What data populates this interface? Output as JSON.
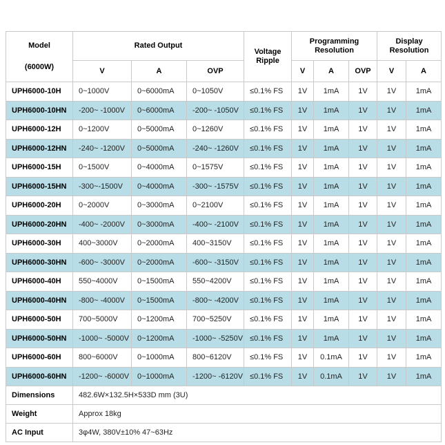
{
  "table": {
    "header": {
      "model_line1": "Model",
      "model_line2": "(6000W)",
      "rated_output": "Rated Output",
      "voltage_ripple_line1": "Voltage",
      "voltage_ripple_line2": "Ripple",
      "programming_resolution_line1": "Programming",
      "programming_resolution_line2": "Resolution",
      "display_resolution_line1": "Display",
      "display_resolution_line2": "Resolution",
      "sub_columns": [
        "V",
        "A",
        "OVP",
        "V",
        "A",
        "OVP",
        "V",
        "A"
      ]
    },
    "rows": [
      {
        "model": "UPH6000-10H",
        "v": "0~1000V",
        "a": "0~6000mA",
        "ovp": "0~1050V",
        "ripple": "≤0.1% FS",
        "pv": "1V",
        "pa": "1mA",
        "povp": "1V",
        "dv": "1V",
        "da": "1mA",
        "highlight": false
      },
      {
        "model": "UPH6000-10HN",
        "v": "-200~ -1000V",
        "a": "0~6000mA",
        "ovp": "-200~ -1050V",
        "ripple": "≤0.1% FS",
        "pv": "1V",
        "pa": "1mA",
        "povp": "1V",
        "dv": "1V",
        "da": "1mA",
        "highlight": true
      },
      {
        "model": "UPH6000-12H",
        "v": "0~1200V",
        "a": "0~5000mA",
        "ovp": "0~1260V",
        "ripple": "≤0.1% FS",
        "pv": "1V",
        "pa": "1mA",
        "povp": "1V",
        "dv": "1V",
        "da": "1mA",
        "highlight": false
      },
      {
        "model": "UPH6000-12HN",
        "v": "-240~ -1200V",
        "a": "0~5000mA",
        "ovp": "-240~ -1260V",
        "ripple": "≤0.1% FS",
        "pv": "1V",
        "pa": "1mA",
        "povp": "1V",
        "dv": "1V",
        "da": "1mA",
        "highlight": true
      },
      {
        "model": "UPH6000-15H",
        "v": "0~1500V",
        "a": "0~4000mA",
        "ovp": "0~1575V",
        "ripple": "≤0.1% FS",
        "pv": "1V",
        "pa": "1mA",
        "povp": "1V",
        "dv": "1V",
        "da": "1mA",
        "highlight": false
      },
      {
        "model": "UPH6000-15HN",
        "v": "-300~-1500V",
        "a": "0~4000mA",
        "ovp": "-300~ -1575V",
        "ripple": "≤0.1% FS",
        "pv": "1V",
        "pa": "1mA",
        "povp": "1V",
        "dv": "1V",
        "da": "1mA",
        "highlight": true
      },
      {
        "model": "UPH6000-20H",
        "v": "0~2000V",
        "a": "0~3000mA",
        "ovp": "0~2100V",
        "ripple": "≤0.1% FS",
        "pv": "1V",
        "pa": "1mA",
        "povp": "1V",
        "dv": "1V",
        "da": "1mA",
        "highlight": false
      },
      {
        "model": "UPH6000-20HN",
        "v": "-400~ -2000V",
        "a": "0~3000mA",
        "ovp": "-400~ -2100V",
        "ripple": "≤0.1% FS",
        "pv": "1V",
        "pa": "1mA",
        "povp": "1V",
        "dv": "1V",
        "da": "1mA",
        "highlight": true
      },
      {
        "model": "UPH6000-30H",
        "v": "400~3000V",
        "a": "0~2000mA",
        "ovp": "400~3150V",
        "ripple": "≤0.1% FS",
        "pv": "1V",
        "pa": "1mA",
        "povp": "1V",
        "dv": "1V",
        "da": "1mA",
        "highlight": false
      },
      {
        "model": "UPH6000-30HN",
        "v": "-600~ -3000V",
        "a": "0~2000mA",
        "ovp": "-600~ -3150V",
        "ripple": "≤0.1% FS",
        "pv": "1V",
        "pa": "1mA",
        "povp": "1V",
        "dv": "1V",
        "da": "1mA",
        "highlight": true
      },
      {
        "model": "UPH6000-40H",
        "v": "550~4000V",
        "a": "0~1500mA",
        "ovp": "550~4200V",
        "ripple": "≤0.1% FS",
        "pv": "1V",
        "pa": "1mA",
        "povp": "1V",
        "dv": "1V",
        "da": "1mA",
        "highlight": false
      },
      {
        "model": "UPH6000-40HN",
        "v": "-800~ -4000V",
        "a": "0~1500mA",
        "ovp": "-800~ -4200V",
        "ripple": "≤0.1% FS",
        "pv": "1V",
        "pa": "1mA",
        "povp": "1V",
        "dv": "1V",
        "da": "1mA",
        "highlight": true
      },
      {
        "model": "UPH6000-50H",
        "v": "700~5000V",
        "a": "0~1200mA",
        "ovp": "700~5250V",
        "ripple": "≤0.1% FS",
        "pv": "1V",
        "pa": "1mA",
        "povp": "1V",
        "dv": "1V",
        "da": "1mA",
        "highlight": false
      },
      {
        "model": "UPH6000-50HN",
        "v": "-1000~ -5000V",
        "a": "0~1200mA",
        "ovp": "-1000~ -5250V",
        "ripple": "≤0.1% FS",
        "pv": "1V",
        "pa": "1mA",
        "povp": "1V",
        "dv": "1V",
        "da": "1mA",
        "highlight": true
      },
      {
        "model": "UPH6000-60H",
        "v": "800~6000V",
        "a": "0~1000mA",
        "ovp": "800~6120V",
        "ripple": "≤0.1% FS",
        "pv": "1V",
        "pa": "0.1mA",
        "povp": "1V",
        "dv": "1V",
        "da": "1mA",
        "highlight": false
      },
      {
        "model": "UPH6000-60HN",
        "v": "-1200~ -6000V",
        "a": "0~1000mA",
        "ovp": "-1200~ -6120V",
        "ripple": "≤0.1% FS",
        "pv": "1V",
        "pa": "0.1mA",
        "povp": "1V",
        "dv": "1V",
        "da": "1mA",
        "highlight": true
      }
    ],
    "footer_rows": [
      {
        "label": "Dimensions",
        "value": "482.6W×132.5H×533D mm (3U)"
      },
      {
        "label": "Weight",
        "value": "Approx 18kg"
      },
      {
        "label": "AC Input",
        "value": "3φ4W, 380V±10% 47~63Hz"
      }
    ],
    "colors": {
      "highlight_row": "#b8dde6",
      "border": "#c9c9c9",
      "background": "#ffffff"
    }
  }
}
